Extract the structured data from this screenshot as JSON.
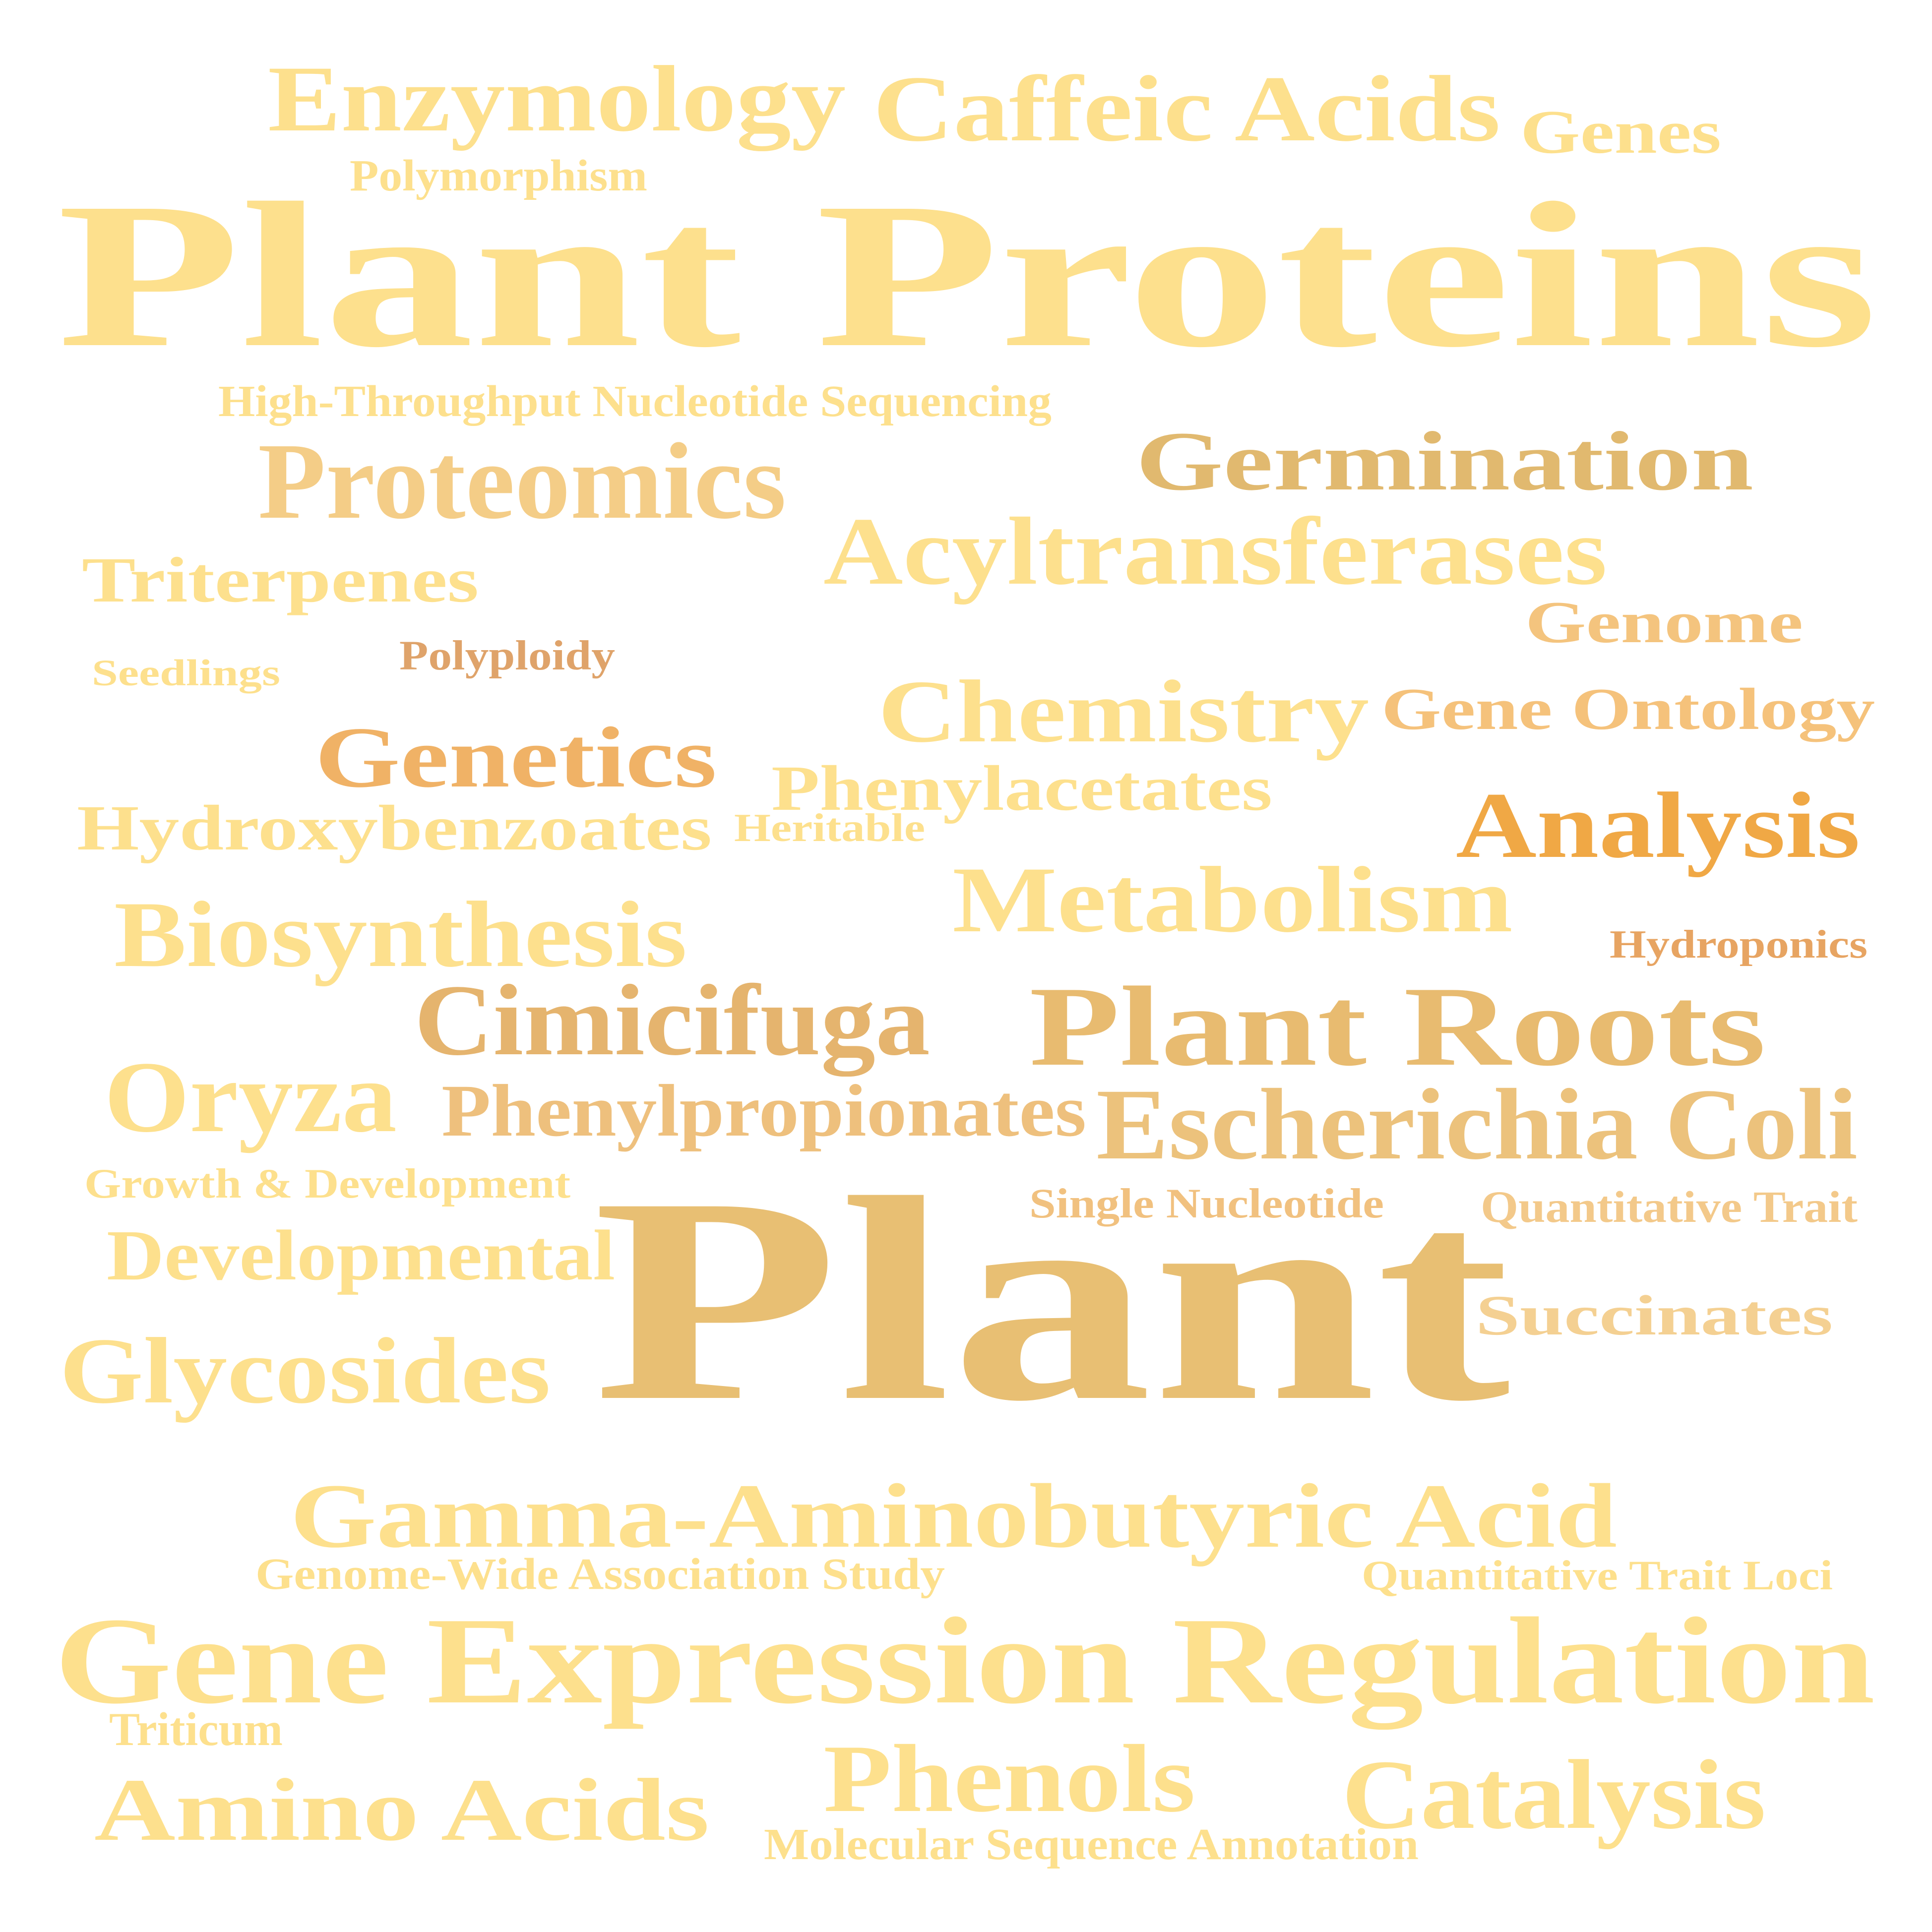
{
  "words": [
    {
      "text": "Enzymology",
      "color": "#fde08d"
    },
    {
      "text": "Caffeic Acids",
      "color": "#fde08d"
    },
    {
      "text": "Genes",
      "color": "#fde08d"
    },
    {
      "text": "Polymorphism",
      "color": "#fde08d"
    },
    {
      "text": "Plant Proteins",
      "color": "#fde08d"
    },
    {
      "text": "High-Throughput Nucleotide Sequencing",
      "color": "#fde08d"
    },
    {
      "text": "Proteomics",
      "color": "#f4cd87"
    },
    {
      "text": "Germination",
      "color": "#e1b96f"
    },
    {
      "text": "Acyltransferases",
      "color": "#fde08d"
    },
    {
      "text": "Triterpenes",
      "color": "#fde08d"
    },
    {
      "text": "Genome",
      "color": "#f4c47e"
    },
    {
      "text": "Seedlings",
      "color": "#fde08d"
    },
    {
      "text": "Polyploidy",
      "color": "#dfa36a"
    },
    {
      "text": "Chemistry",
      "color": "#fde08d"
    },
    {
      "text": "Gene Ontology",
      "color": "#f5c27b"
    },
    {
      "text": "Genetics",
      "color": "#f0b266"
    },
    {
      "text": "Phenylacetates",
      "color": "#fde08d"
    },
    {
      "text": "Hydroxybenzoates",
      "color": "#fde08d"
    },
    {
      "text": "Heritable",
      "color": "#fde08d"
    },
    {
      "text": "Analysis",
      "color": "#f0a845"
    },
    {
      "text": "Metabolism",
      "color": "#fde08d"
    },
    {
      "text": "Biosynthesis",
      "color": "#fde08d"
    },
    {
      "text": "Hydroponics",
      "color": "#e7a462"
    },
    {
      "text": "Cimicifuga",
      "color": "#e5b46e"
    },
    {
      "text": "Plant Roots",
      "color": "#e8bb70"
    },
    {
      "text": "Oryza",
      "color": "#fde08d"
    },
    {
      "text": "Phenylpropionates",
      "color": "#eec07d"
    },
    {
      "text": "Escherichia Coli",
      "color": "#ecc27c"
    },
    {
      "text": "Growth & Development",
      "color": "#fde08d"
    },
    {
      "text": "Plant",
      "color": "#e8bf73"
    },
    {
      "text": "Single Nucleotide",
      "color": "#f1c17f"
    },
    {
      "text": "Quantitative Trait",
      "color": "#f3c98a"
    },
    {
      "text": "Developmental",
      "color": "#fde08d"
    },
    {
      "text": "Succinates",
      "color": "#f4d092"
    },
    {
      "text": "Glycosides",
      "color": "#fde08d"
    },
    {
      "text": "Gamma-Aminobutyric Acid",
      "color": "#fde08d"
    },
    {
      "text": "Genome-Wide Association Study",
      "color": "#fde08d"
    },
    {
      "text": "Quantitative Trait Loci",
      "color": "#fde08d"
    },
    {
      "text": "Gene Expression Regulation",
      "color": "#fde08d"
    },
    {
      "text": "Triticum",
      "color": "#fde08d"
    },
    {
      "text": "Amino Acids",
      "color": "#fde08d"
    },
    {
      "text": "Phenols",
      "color": "#fde08d"
    },
    {
      "text": "Catalysis",
      "color": "#fde08d"
    },
    {
      "text": "Molecular Sequence Annotation",
      "color": "#fde08d"
    }
  ]
}
